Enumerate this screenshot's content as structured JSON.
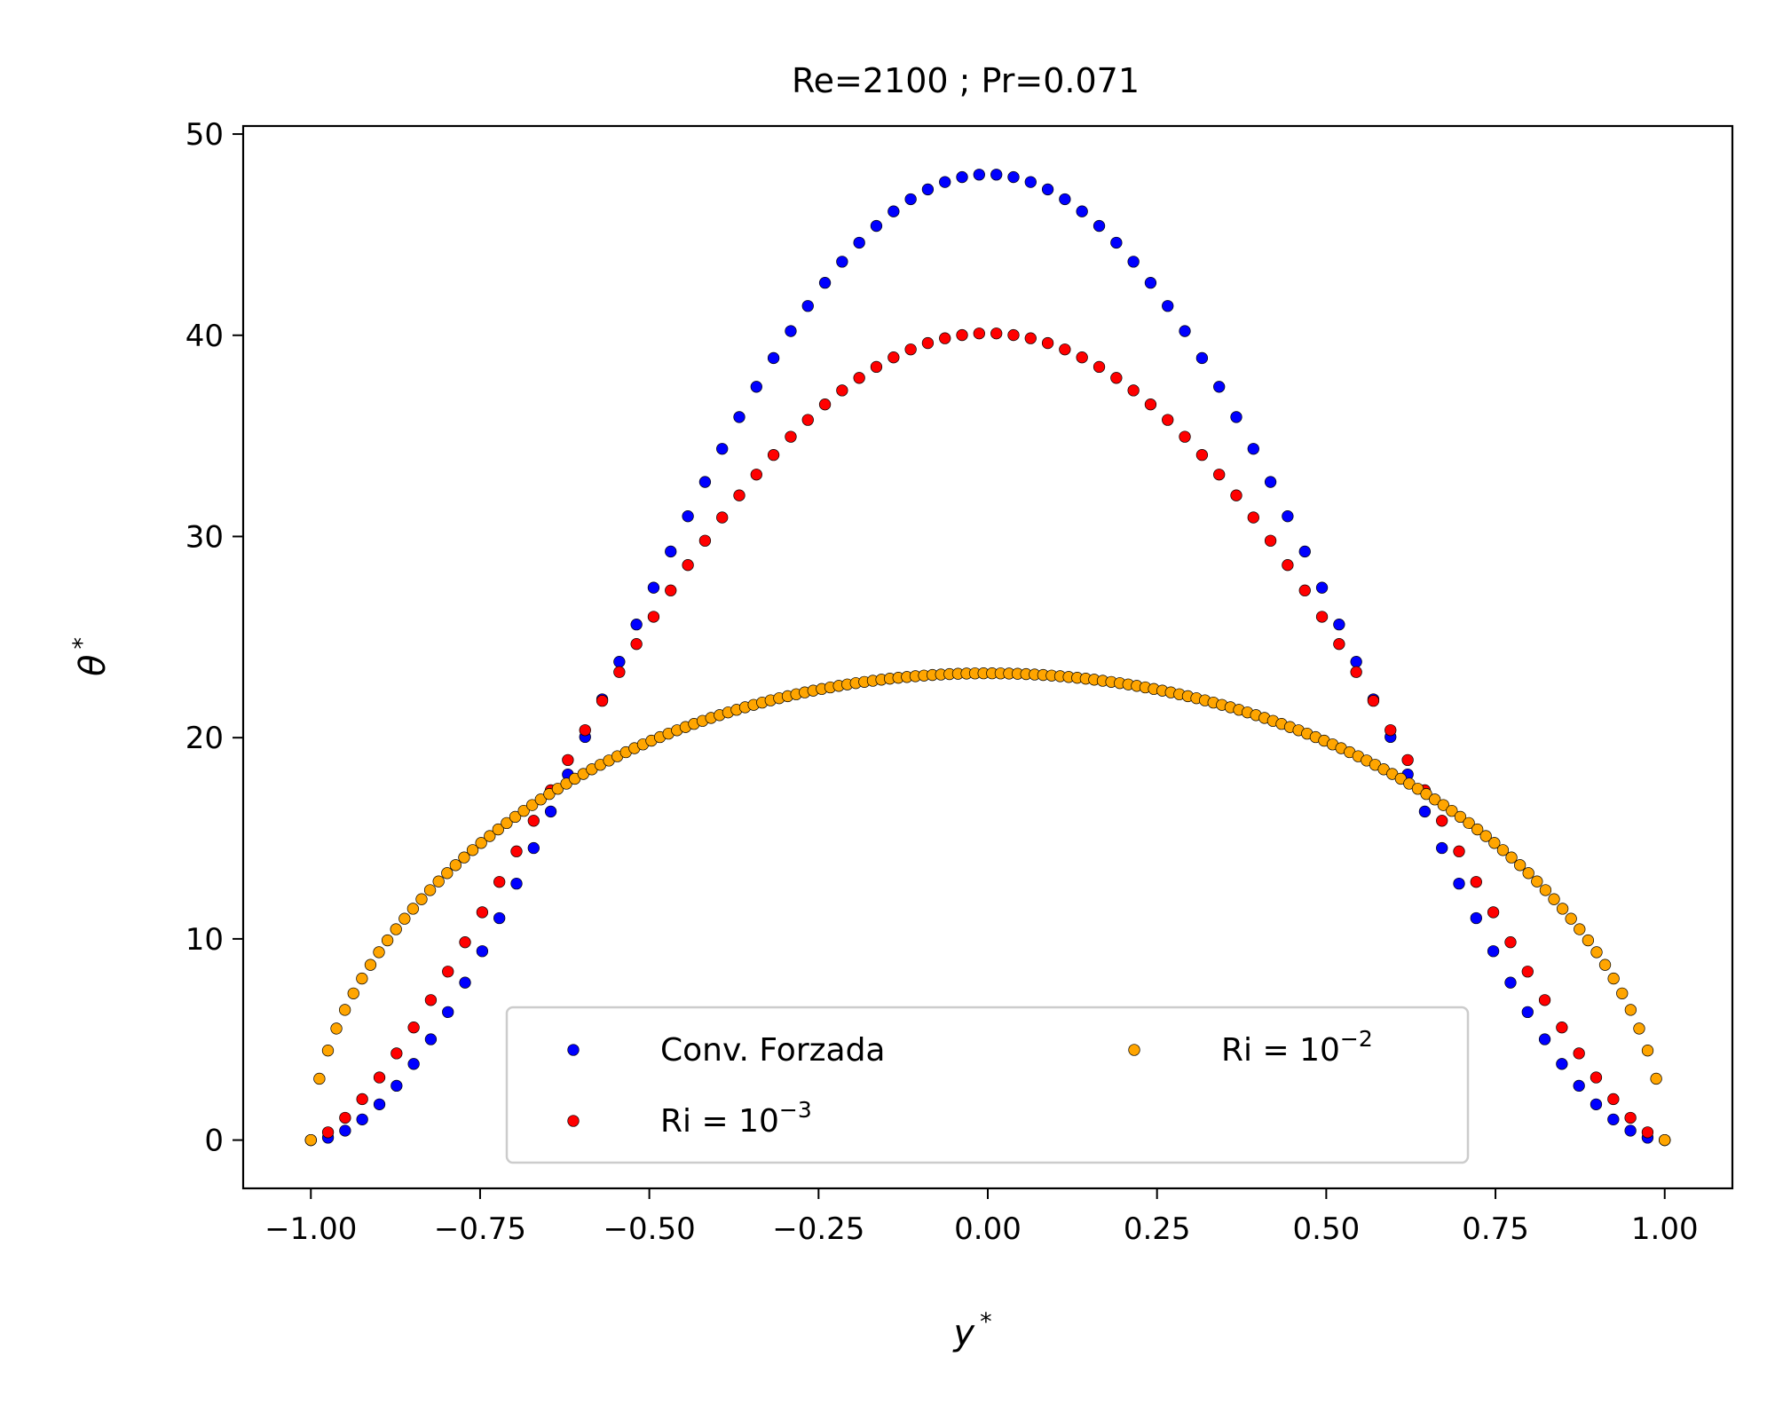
{
  "chart_data": {
    "type": "scatter",
    "title": "Re=2100 ; Pr=0.071",
    "xlabel": "y",
    "xlabel_sup": "*",
    "ylabel": "θ",
    "ylabel_sup": "*",
    "xlim": [
      -1.1,
      1.1
    ],
    "ylim": [
      -2.4,
      50.4
    ],
    "xticks": [
      -1.0,
      -0.75,
      -0.5,
      -0.25,
      0.0,
      0.25,
      0.5,
      0.75,
      1.0
    ],
    "xtick_labels": [
      "−1.00",
      "−0.75",
      "−0.50",
      "−0.25",
      "0.00",
      "0.25",
      "0.50",
      "0.75",
      "1.00"
    ],
    "yticks": [
      0,
      10,
      20,
      30,
      40,
      50
    ],
    "ytick_labels": [
      "0",
      "10",
      "20",
      "30",
      "40",
      "50"
    ],
    "grid": false,
    "legend_position": "lower-center",
    "series": [
      {
        "name": "Conv. Forzada",
        "legend_base": "Conv. Forzada",
        "legend_exp": "",
        "color": "#0000ff",
        "peak": 48.0,
        "shape_exponent": 2.0,
        "num_points": 80
      },
      {
        "name": "Ri = 10^-3",
        "legend_base": "Ri = 10",
        "legend_exp": "−3",
        "color": "#ff0000",
        "peak": 40.1,
        "shape_exponent": 1.55,
        "num_points": 80
      },
      {
        "name": "Ri = 10^-2",
        "legend_base": "Ri = 10",
        "legend_exp": "−2",
        "color": "#ffa500",
        "peak": 23.2,
        "shape_exponent": 0.55,
        "num_points": 160
      }
    ]
  }
}
